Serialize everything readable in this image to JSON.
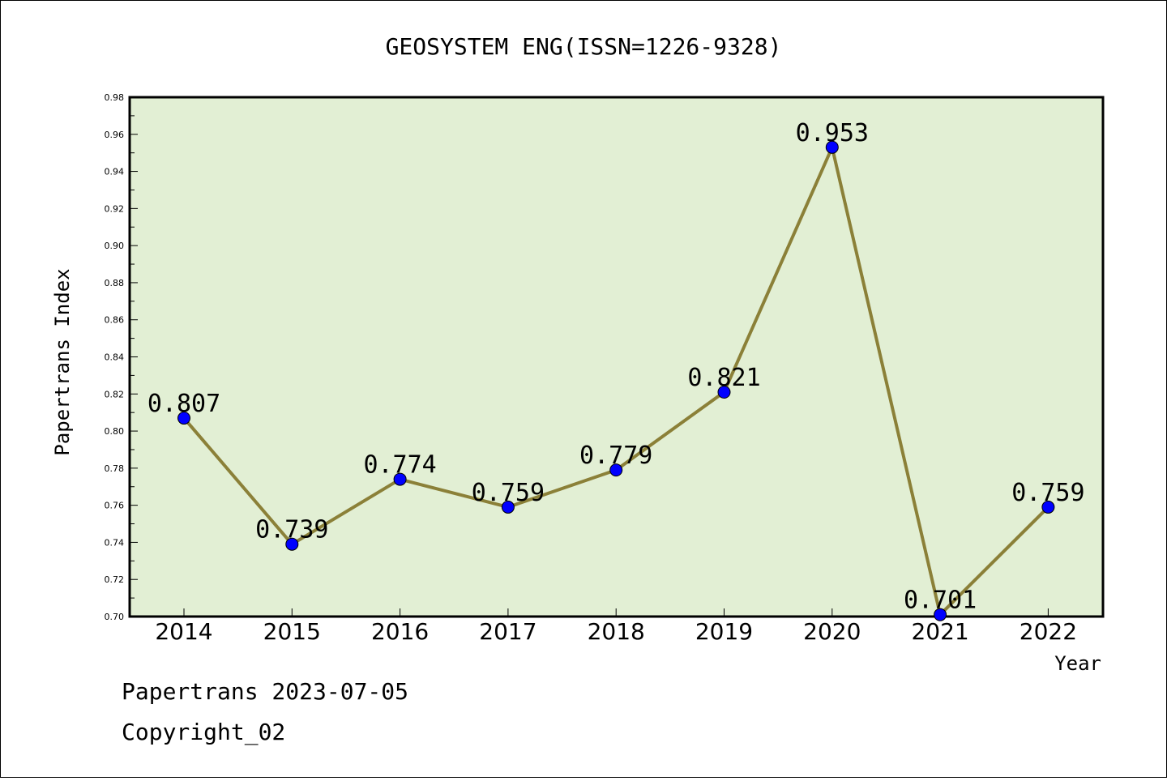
{
  "chart_data": {
    "type": "line",
    "title": "GEOSYSTEM ENG(ISSN=1226-9328)",
    "xlabel": "Year",
    "ylabel": "Papertrans Index",
    "categories": [
      "2014",
      "2015",
      "2016",
      "2017",
      "2018",
      "2019",
      "2020",
      "2021",
      "2022"
    ],
    "series": [
      {
        "values": [
          0.807,
          0.739,
          0.774,
          0.759,
          0.779,
          0.821,
          0.953,
          0.701,
          0.759
        ],
        "data_labels": [
          "0.807",
          "0.739",
          "0.774",
          "0.759",
          "0.779",
          "0.821",
          "0.953",
          "0.701",
          "0.759"
        ]
      }
    ],
    "ylim": [
      0.7,
      0.98
    ],
    "yticks": [
      "0.70",
      "0.72",
      "0.74",
      "0.76",
      "0.78",
      "0.80",
      "0.82",
      "0.84",
      "0.86",
      "0.88",
      "0.90",
      "0.92",
      "0.94",
      "0.96",
      "0.98"
    ],
    "grid": false,
    "colors": {
      "plot_background": "#e2efd4",
      "line": "#8b8038",
      "marker": "#0000ff"
    }
  },
  "footer": {
    "line1": "Papertrans 2023-07-05",
    "line2": "Copyright_02"
  }
}
